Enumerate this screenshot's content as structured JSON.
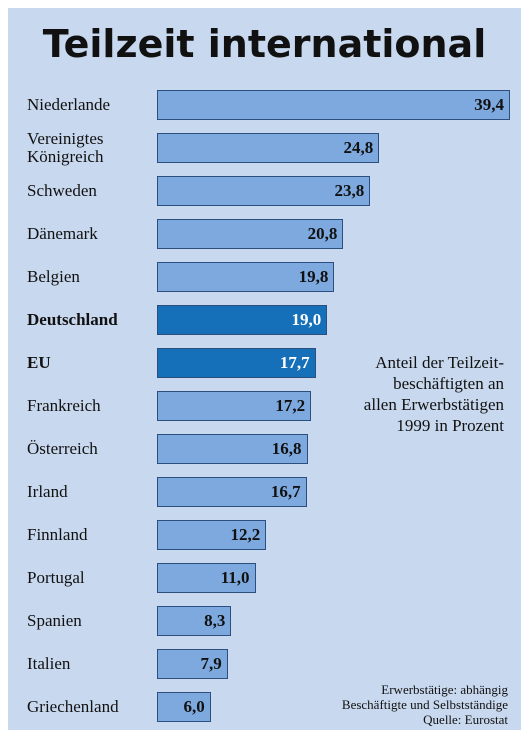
{
  "chart_data": {
    "type": "bar",
    "orientation": "horizontal",
    "title": "Teilzeit international",
    "categories": [
      "Niederlande",
      "Vereinigtes Königreich",
      "Schweden",
      "Dänemark",
      "Belgien",
      "Deutschland",
      "EU",
      "Frankreich",
      "Österreich",
      "Irland",
      "Finnland",
      "Portugal",
      "Spanien",
      "Italien",
      "Griechenland"
    ],
    "values": [
      39.4,
      24.8,
      23.8,
      20.8,
      19.8,
      19.0,
      17.7,
      17.2,
      16.8,
      16.7,
      12.2,
      11.0,
      8.3,
      7.9,
      6.0
    ],
    "value_labels": [
      "39,4",
      "24,8",
      "23,8",
      "20,8",
      "19,8",
      "19,0",
      "17,7",
      "17,2",
      "16,8",
      "16,7",
      "12,2",
      "11,0",
      "8,3",
      "7,9",
      "6,0"
    ],
    "color": "#7ea9de",
    "highlight_color": "#1570b9",
    "highlighted": [
      "Deutschland",
      "EU"
    ],
    "annotation": "Anteil der Teilzeit-\nbeschäftigten an\nallen Erwerbstätigen\n1999 in Prozent",
    "footnote": "Erwerbstätige: abhängig\nBeschäftigte und Selbstständige\nQuelle: Eurostat"
  }
}
